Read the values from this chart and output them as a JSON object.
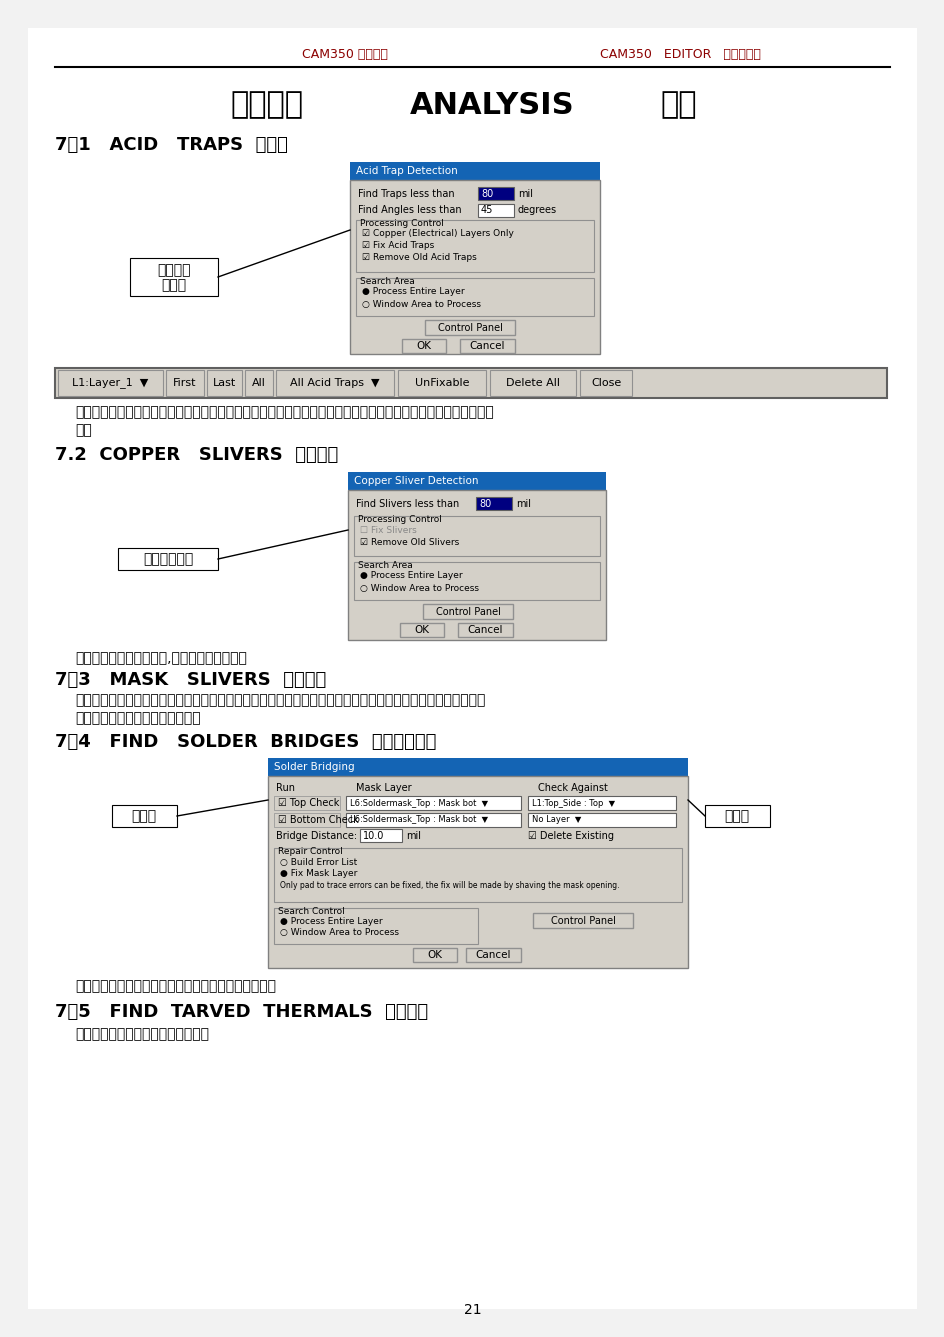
{
  "page_bg": "#f2f2f2",
  "content_bg": "#ffffff",
  "header_left": "CAM350 使用手册",
  "header_right": "CAM350   EDITOR   图形编辑器",
  "title_cn": "第七章：",
  "title_en": "ANALYSIS",
  "title_cn2": "分析",
  "s1_title": "7．1   ACID   TRAPS  蚀刻位",
  "s2_title": "7.2  COPPER   SLIVERS  铜皮缝隙",
  "s3_title": "7．3   MASK   SLIVERS  阻焊缝隙",
  "s4_title": "7．4   FIND   SOLDER  BRIDGES  查找阻焊架桥",
  "s5_title": "7．5   FIND  TARVED  THERMALS  查找乏热",
  "lbl1a": "设定最小",
  "lbl1b": "蚀刻角",
  "lbl2": "铜皮最小长度",
  "lbl3": "阻焊层",
  "lbl4": "线路层",
  "body1": "自动分析蚀刻角，当有小于设定角度时，系统自动在此处加上一块铜皮，使蚀刻时不至于有蚀刻不到或不完整的地",
  "body1b": "方。",
  "body2": "分析铜皮最小长度即铜渣,可将其找出并删除。",
  "body3a": "分析阻焊层中焊盘与焊盘，焊盘与线条，线条与线条之间的最小距离，如果距离在设定的最小距离以内，系统将",
  "body3b": "相近的两元素用多边形连接起来。",
  "body4": "分析阻焊层元素盖住线路局部分，造成线路局部露铜。",
  "body5": "用于检测复合层被叠减层的正确性。",
  "page_num": "21",
  "dlg_title_color": "#1464b4",
  "dlg_bg": "#d4d0c8",
  "dlg_border": "#808080"
}
